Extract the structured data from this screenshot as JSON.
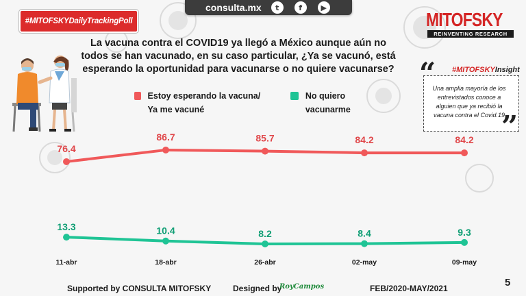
{
  "header": {
    "site": "consulta.mx",
    "social_icons": [
      {
        "name": "twitter-icon",
        "glyph": "t"
      },
      {
        "name": "facebook-icon",
        "glyph": "f"
      },
      {
        "name": "youtube-icon",
        "glyph": "▶"
      }
    ],
    "poll_badge": "#MITOFSKYDailyTrackingPoll",
    "brand_name": "MITOFSKY",
    "brand_tagline": "REINVENTING RESEARCH"
  },
  "question": "La vacuna contra el COVID19 ya llegó a México aunque aún no todos se han vacunado, en su caso particular, ¿Ya se vacunó, está esperando la oportunidad para vacunarse o no quiere vacunarse?",
  "legend": {
    "red": "Estoy esperando la vacuna/ Ya me vacuné",
    "green": "No quiero vacunarme"
  },
  "insight": {
    "tag_prefix": "#MITOFSKY",
    "tag_suffix": "Insight",
    "text": "Una amplia mayoría de los entrevistados conoce a alguien que ya recibió la vacuna contra el Covid.19"
  },
  "chart_data": {
    "type": "line",
    "categories": [
      "11-abr",
      "18-abr",
      "26-abr",
      "02-may",
      "09-may"
    ],
    "series": [
      {
        "name": "Estoy esperando la vacuna/ Ya me vacuné",
        "color": "#f0595a",
        "values": [
          76.4,
          86.7,
          85.7,
          84.2,
          84.2
        ]
      },
      {
        "name": "No quiero vacunarme",
        "color": "#1fc495",
        "values": [
          13.3,
          10.4,
          8.2,
          8.4,
          9.3
        ]
      }
    ]
  },
  "footer": {
    "supported": "Supported by  CONSULTA  MITOFSKY",
    "designed": "Designed by",
    "designer": "RoyCampos",
    "range": "FEB/2020-MAY/2021",
    "page": "5"
  },
  "colors": {
    "brand_red": "#d42525",
    "badge_red": "#dc2b2b",
    "series_red": "#f0595a",
    "series_green": "#1fc495"
  }
}
